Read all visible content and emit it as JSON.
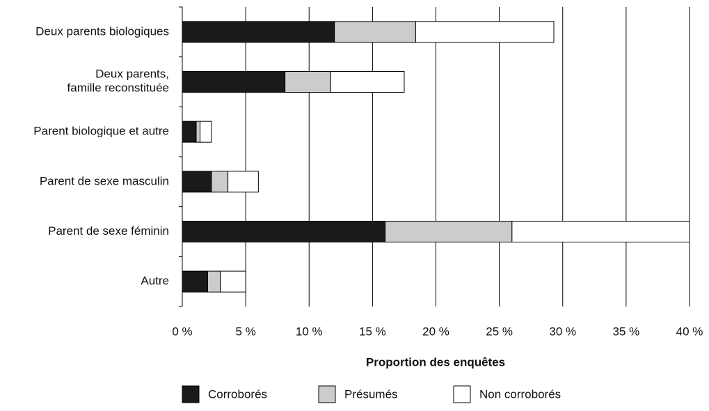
{
  "chart_data": {
    "type": "stacked_barh",
    "categories": [
      "Deux parents biologiques",
      "Deux parents,\nfamille reconstituée",
      "Parent biologique et autre",
      "Parent de sexe masculin",
      "Parent de sexe féminin",
      "Autre"
    ],
    "series": [
      {
        "name": "Corroborés",
        "color": "#1a1a1a",
        "values": [
          12.0,
          8.1,
          1.1,
          2.3,
          16.0,
          2.0
        ]
      },
      {
        "name": "Présumés",
        "color": "#cccccc",
        "values": [
          6.4,
          3.6,
          0.3,
          1.3,
          10.0,
          1.0
        ]
      },
      {
        "name": "Non corroborés",
        "color": "#ffffff",
        "values": [
          10.9,
          5.8,
          0.9,
          2.4,
          14.0,
          2.0
        ]
      }
    ],
    "x_label": "Proportion des enquêtes",
    "xlim": [
      0,
      40
    ],
    "xticks": [
      {
        "value": 0,
        "label": "0 %"
      },
      {
        "value": 5,
        "label": "5 %"
      },
      {
        "value": 10,
        "label": "10 %"
      },
      {
        "value": 15,
        "label": "15 %"
      },
      {
        "value": 20,
        "label": "20 %"
      },
      {
        "value": 25,
        "label": "25 %"
      },
      {
        "value": 30,
        "label": "30 %"
      },
      {
        "value": 35,
        "label": "35 %"
      },
      {
        "value": 40,
        "label": "40 %"
      }
    ],
    "grid": true,
    "legend": "bottom"
  }
}
